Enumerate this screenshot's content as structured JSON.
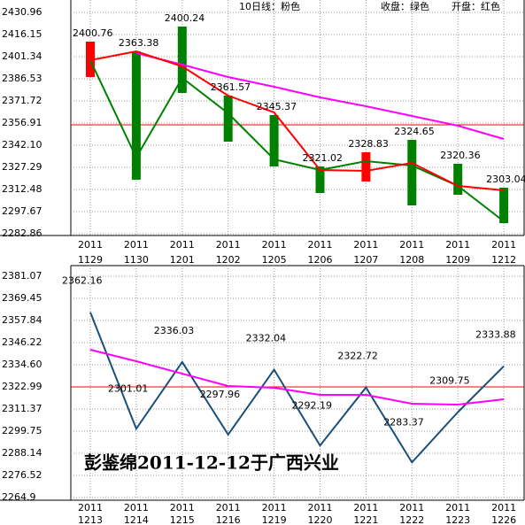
{
  "chart_data": [
    {
      "type": "candlestick",
      "categories": [
        [
          "2011",
          "1129"
        ],
        [
          "2011",
          "1130"
        ],
        [
          "2011",
          "1201"
        ],
        [
          "2011",
          "1202"
        ],
        [
          "2011",
          "1205"
        ],
        [
          "2011",
          "1206"
        ],
        [
          "2011",
          "1207"
        ],
        [
          "2011",
          "1208"
        ],
        [
          "2011",
          "1209"
        ],
        [
          "2011",
          "1212"
        ]
      ],
      "candles": {
        "open": [
          2387.71,
          2404.89,
          2421.48,
          2375.27,
          2362.24,
          2327.88,
          2317.81,
          2345.65,
          2329.66,
          2313.66
        ],
        "close": [
          2411.41,
          2319.0,
          2377.05,
          2344.47,
          2327.88,
          2310.11,
          2337.36,
          2301.82,
          2308.93,
          2289.97
        ],
        "up_color": "#ff0000",
        "down_color": "#008000"
      },
      "series": [
        {
          "name": "10日线：粉色",
          "color": "#ff00ff",
          "values": [
            null,
            2403.71,
            2396.01,
            2387.71,
            2381.2,
            2374.09,
            2368.17,
            2361.65,
            2355.13,
            2346.25
          ]
        },
        {
          "name": "收盘：绿色",
          "color": "#008000",
          "values": [
            2398.97,
            2333.81,
            2387.12,
            2363.43,
            2332.62,
            2325.51,
            2331.44,
            2328.47,
            2314.85,
            2291.15
          ]
        },
        {
          "name": "开盘：红色",
          "color": "#ff0000",
          "values": [
            2398.97,
            2404.89,
            2394.82,
            2375.27,
            2364.02,
            2325.51,
            2324.92,
            2330.25,
            2314.85,
            2311.89
          ]
        }
      ],
      "labels": [
        2400.76,
        2363.38,
        2400.24,
        2361.57,
        2345.37,
        2321.02,
        2328.83,
        2324.65,
        2320.36,
        2303.04
      ],
      "label_color": "#cc00cc",
      "hline": {
        "value": 2355.73,
        "color": "#ff0000"
      },
      "ylim": [
        2282.86,
        2430.96
      ],
      "yticks": [
        2430.96,
        2416.15,
        2401.34,
        2386.53,
        2371.72,
        2356.91,
        {
          "value": 2342.1,
          "label": "2342.10"
        },
        2327.29,
        2312.48,
        2297.67,
        2282.86
      ],
      "grid": true
    },
    {
      "type": "line",
      "categories": [
        [
          "2011",
          "1213"
        ],
        [
          "2011",
          "1214"
        ],
        [
          "2011",
          "1215"
        ],
        [
          "2011",
          "1216"
        ],
        [
          "2011",
          "1219"
        ],
        [
          "2011",
          "1220"
        ],
        [
          "2011",
          "1221"
        ],
        [
          "2011",
          "1222"
        ],
        [
          "2011",
          "1223"
        ],
        [
          "2011",
          "1226"
        ]
      ],
      "series": [
        {
          "color": "#1a4f7a",
          "values": [
            2362.16,
            2301.01,
            2336.03,
            2297.96,
            2332.04,
            2292.19,
            2322.72,
            2283.37,
            2309.75,
            2333.88
          ],
          "show_labels": true
        },
        {
          "color": "#ff00ff",
          "values": [
            2342.49,
            2336.45,
            2329.94,
            2323.43,
            2322.51,
            2318.79,
            2318.79,
            2314.14,
            2313.67,
            2316.46
          ]
        }
      ],
      "hline": {
        "value": 2322.99,
        "color": "#ff0000"
      },
      "ylim": [
        2264.9,
        2381.07
      ],
      "yticks": [
        2381.07,
        2369.45,
        2357.84,
        2346.22,
        {
          "value": 2334.6,
          "label": "2334.60"
        },
        2322.99,
        2311.37,
        2299.75,
        2288.14,
        2276.52,
        2264.9
      ],
      "grid": true,
      "annotation": "彭鉴绵2011-12-12于广西兴业"
    }
  ]
}
